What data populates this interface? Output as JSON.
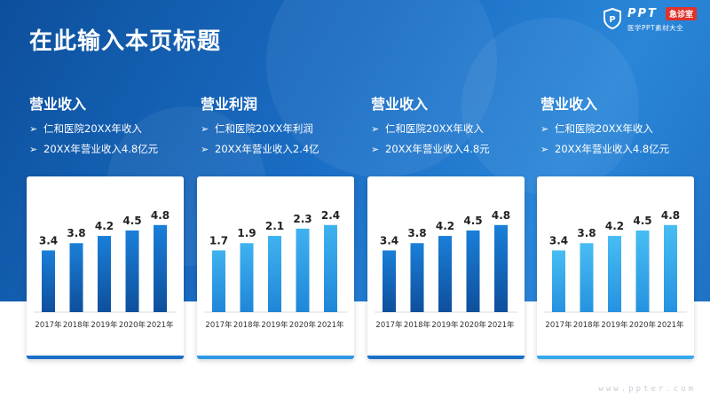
{
  "title": "在此输入本页标题",
  "logo": {
    "name": "PPT",
    "badge": "急诊室",
    "subtitle": "医学PPT素材大全"
  },
  "columns": [
    {
      "heading": "营业收入",
      "bullets": [
        "仁和医院20XX年收入",
        "20XX年营业收入4.8亿元"
      ],
      "accent": "#1a6fc8",
      "bar_top": "#1a7fd8",
      "bar_bottom": "#0e4f9c"
    },
    {
      "heading": "营业利润",
      "bullets": [
        "仁和医院20XX年利润",
        "20XX年营业收入2.4亿"
      ],
      "accent": "#2d98e6",
      "bar_top": "#3fb2f0",
      "bar_bottom": "#1f86d8"
    },
    {
      "heading": "营业收入",
      "bullets": [
        "仁和医院20XX年收入",
        "20XX年营业收入4.8元"
      ],
      "accent": "#1a6fc8",
      "bar_top": "#1a7fd8",
      "bar_bottom": "#0e4f9c"
    },
    {
      "heading": "营业收入",
      "bullets": [
        "仁和医院20XX年收入",
        "20XX年营业收入4.8亿元"
      ],
      "accent": "#35a8ec",
      "bar_top": "#47bdf3",
      "bar_bottom": "#2592e0"
    }
  ],
  "chart_data": [
    {
      "type": "bar",
      "categories": [
        "2017年",
        "2018年",
        "2019年",
        "2020年",
        "2021年"
      ],
      "values": [
        3.4,
        3.8,
        4.2,
        4.5,
        4.8
      ],
      "ylim": [
        0,
        6.5
      ]
    },
    {
      "type": "bar",
      "categories": [
        "2017年",
        "2018年",
        "2019年",
        "2020年",
        "2021年"
      ],
      "values": [
        1.7,
        1.9,
        2.1,
        2.3,
        2.4
      ],
      "ylim": [
        0,
        3.25
      ]
    },
    {
      "type": "bar",
      "categories": [
        "2017年",
        "2018年",
        "2019年",
        "2020年",
        "2021年"
      ],
      "values": [
        3.4,
        3.8,
        4.2,
        4.5,
        4.8
      ],
      "ylim": [
        0,
        6.5
      ]
    },
    {
      "type": "bar",
      "categories": [
        "2017年",
        "2018年",
        "2019年",
        "2020年",
        "2021年"
      ],
      "values": [
        3.4,
        3.8,
        4.2,
        4.5,
        4.8
      ],
      "ylim": [
        0,
        6.5
      ]
    }
  ],
  "watermark": "www.ppter.com"
}
